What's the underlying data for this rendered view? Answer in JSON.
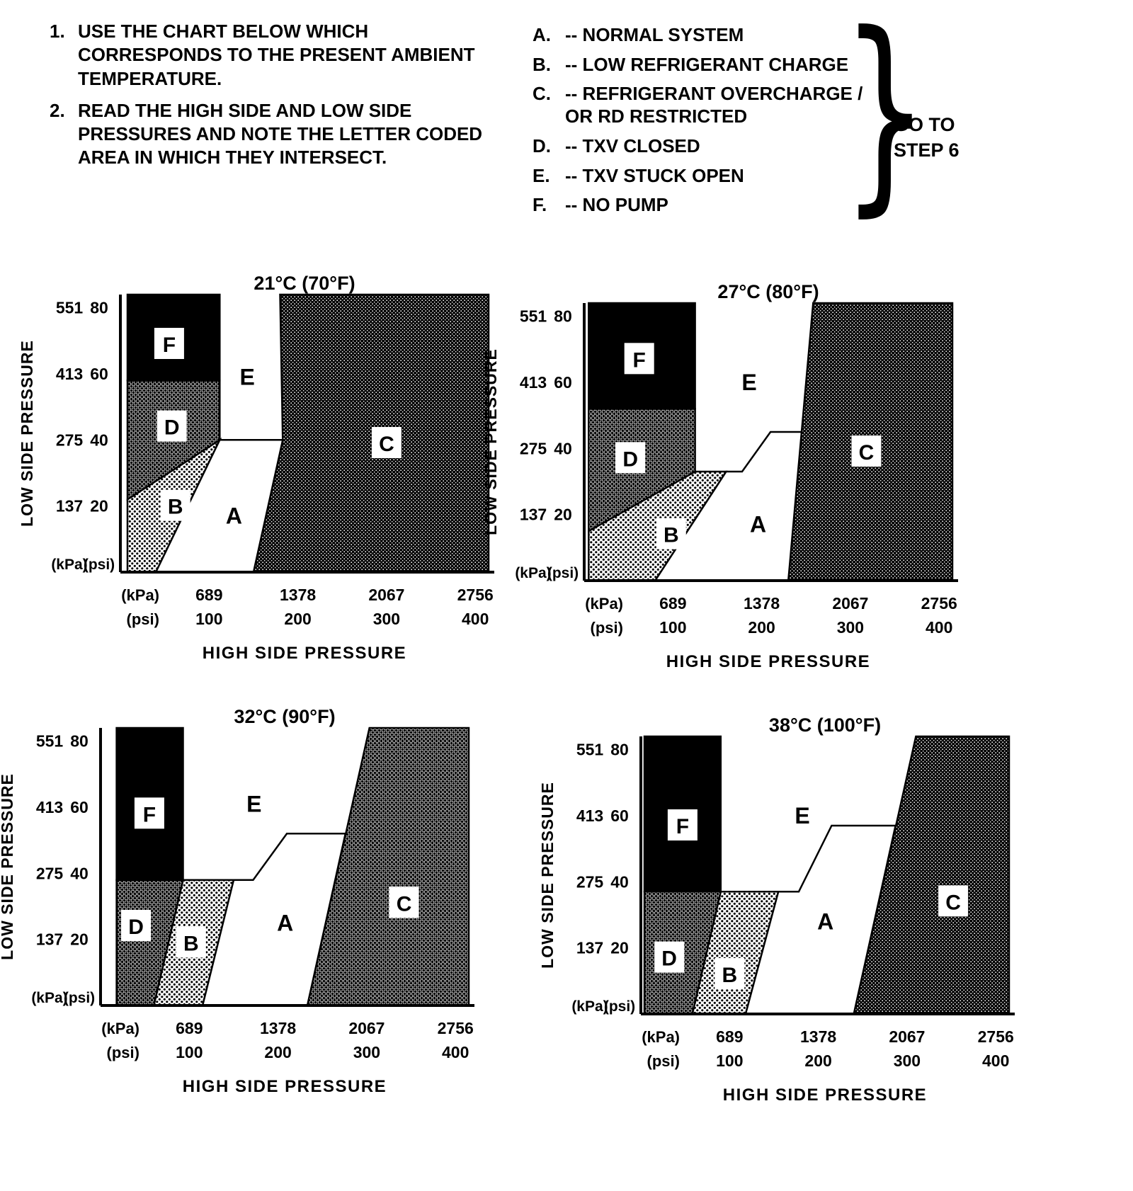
{
  "instructions": [
    {
      "num": "1.",
      "text": "USE THE CHART BELOW WHICH CORRESPONDS TO THE PRESENT AMBIENT TEMPERATURE."
    },
    {
      "num": "2.",
      "text": "READ THE HIGH SIDE AND LOW SIDE PRESSURES AND NOTE THE LETTER CODED AREA IN WHICH THEY INTERSECT."
    }
  ],
  "legend": {
    "items": [
      {
        "code": "A.",
        "label": "-- NORMAL SYSTEM"
      },
      {
        "code": "B.",
        "label": "-- LOW REFRIGERANT CHARGE"
      },
      {
        "code": "C.",
        "label": "-- REFRIGERANT OVERCHARGE / OR RD RESTRICTED"
      },
      {
        "code": "D.",
        "label": "-- TXV CLOSED"
      },
      {
        "code": "E.",
        "label": "-- TXV STUCK OPEN"
      },
      {
        "code": "F.",
        "label": "-- NO PUMP"
      }
    ],
    "brace_glyph": "}",
    "goto_line1": "GO TO",
    "goto_line2": "STEP 6"
  },
  "chart_data": [
    {
      "type": "area",
      "title": "21°C (70°F)",
      "xlabel": "HIGH SIDE PRESSURE",
      "ylabel": "LOW SIDE PRESSURE",
      "unit_kpa": "(kPa)",
      "unit_psi": "(psi)",
      "xlim": [
        0,
        415
      ],
      "ylim": [
        0,
        84
      ],
      "x_ticks": [
        {
          "v": 100,
          "kpa": "689",
          "psi": "100"
        },
        {
          "v": 200,
          "kpa": "1378",
          "psi": "200"
        },
        {
          "v": 300,
          "kpa": "2067",
          "psi": "300"
        },
        {
          "v": 400,
          "kpa": "2756",
          "psi": "400"
        }
      ],
      "y_ticks": [
        {
          "v": 80,
          "kpa": "551",
          "psi": "80"
        },
        {
          "v": 60,
          "kpa": "413",
          "psi": "60"
        },
        {
          "v": 40,
          "kpa": "275",
          "psi": "40"
        },
        {
          "v": 20,
          "kpa": "137",
          "psi": "20"
        }
      ],
      "regions": [
        {
          "label": "C",
          "meaning": "REFRIGERANT OVERCHARGE / OR RD RESTRICTED",
          "fill": "heavy",
          "boxed": true,
          "label_xy": [
            300,
            39
          ],
          "polygon": [
            [
              150,
              0
            ],
            [
              415,
              0
            ],
            [
              415,
              84
            ],
            [
              180,
              84
            ],
            [
              183,
              40
            ]
          ]
        },
        {
          "label": "B",
          "meaning": "LOW REFRIGERANT CHARGE",
          "fill": "medium",
          "boxed": true,
          "label_xy": [
            62,
            20
          ],
          "polygon": [
            [
              8,
              22
            ],
            [
              112,
              40
            ],
            [
              40,
              0
            ],
            [
              8,
              0
            ]
          ]
        },
        {
          "label": "D",
          "meaning": "TXV CLOSED",
          "fill": "dense",
          "boxed": true,
          "label_xy": [
            58,
            44
          ],
          "polygon": [
            [
              8,
              58
            ],
            [
              112,
              58
            ],
            [
              112,
              40
            ],
            [
              8,
              22
            ]
          ]
        },
        {
          "label": "A",
          "meaning": "NORMAL SYSTEM",
          "fill": "white",
          "boxed": false,
          "label_xy": [
            128,
            17
          ],
          "polygon": [
            [
              40,
              0
            ],
            [
              150,
              0
            ],
            [
              183,
              40
            ],
            [
              112,
              40
            ]
          ]
        },
        {
          "label": "E",
          "meaning": "TXV STUCK OPEN",
          "fill": "white",
          "boxed": false,
          "draw": false,
          "label_xy": [
            143,
            59
          ],
          "polygon": [
            [
              112,
              40
            ],
            [
              183,
              40
            ],
            [
              180,
              84
            ],
            [
              112,
              84
            ]
          ]
        },
        {
          "label": "F",
          "meaning": "NO PUMP",
          "fill": "black",
          "boxed": true,
          "label_xy": [
            55,
            69
          ],
          "polygon": [
            [
              8,
              58
            ],
            [
              112,
              58
            ],
            [
              112,
              84
            ],
            [
              8,
              84
            ]
          ]
        }
      ]
    },
    {
      "type": "area",
      "title": "27°C (80°F)",
      "xlabel": "HIGH SIDE PRESSURE",
      "ylabel": "LOW SIDE PRESSURE",
      "unit_kpa": "(kPa)",
      "unit_psi": "(psi)",
      "xlim": [
        0,
        415
      ],
      "ylim": [
        0,
        84
      ],
      "x_ticks": [
        {
          "v": 100,
          "kpa": "689",
          "psi": "100"
        },
        {
          "v": 200,
          "kpa": "1378",
          "psi": "200"
        },
        {
          "v": 300,
          "kpa": "2067",
          "psi": "300"
        },
        {
          "v": 400,
          "kpa": "2756",
          "psi": "400"
        }
      ],
      "y_ticks": [
        {
          "v": 80,
          "kpa": "551",
          "psi": "80"
        },
        {
          "v": 60,
          "kpa": "413",
          "psi": "60"
        },
        {
          "v": 40,
          "kpa": "275",
          "psi": "40"
        },
        {
          "v": 20,
          "kpa": "137",
          "psi": "20"
        }
      ],
      "regions": [
        {
          "label": "C",
          "meaning": "REFRIGERANT OVERCHARGE / OR RD RESTRICTED",
          "fill": "heavy",
          "boxed": true,
          "label_xy": [
            318,
            39
          ],
          "polygon": [
            [
              230,
              0
            ],
            [
              415,
              0
            ],
            [
              415,
              84
            ],
            [
              258,
              84
            ],
            [
              245,
              45
            ]
          ]
        },
        {
          "label": "B",
          "meaning": "LOW REFRIGERANT CHARGE",
          "fill": "medium",
          "boxed": true,
          "label_xy": [
            98,
            14
          ],
          "polygon": [
            [
              5,
              0
            ],
            [
              5,
              15
            ],
            [
              125,
              33
            ],
            [
              160,
              33
            ],
            [
              80,
              0
            ]
          ]
        },
        {
          "label": "D",
          "meaning": "TXV CLOSED",
          "fill": "dense",
          "boxed": true,
          "label_xy": [
            52,
            37
          ],
          "polygon": [
            [
              5,
              15
            ],
            [
              5,
              52
            ],
            [
              125,
              52
            ],
            [
              125,
              33
            ]
          ]
        },
        {
          "label": "A",
          "meaning": "NORMAL SYSTEM",
          "fill": "white",
          "boxed": false,
          "label_xy": [
            196,
            17
          ],
          "polygon": [
            [
              80,
              0
            ],
            [
              230,
              0
            ],
            [
              245,
              45
            ],
            [
              210,
              45
            ],
            [
              178,
              33
            ],
            [
              160,
              33
            ]
          ]
        },
        {
          "label": "E",
          "meaning": "TXV STUCK OPEN",
          "fill": "white",
          "boxed": false,
          "draw": false,
          "label_xy": [
            186,
            60
          ],
          "polygon": [
            [
              125,
              33
            ],
            [
              178,
              33
            ],
            [
              210,
              45
            ],
            [
              245,
              45
            ],
            [
              258,
              84
            ],
            [
              125,
              84
            ]
          ]
        },
        {
          "label": "F",
          "meaning": "NO PUMP",
          "fill": "black",
          "boxed": true,
          "label_xy": [
            62,
            67
          ],
          "polygon": [
            [
              5,
              52
            ],
            [
              125,
              52
            ],
            [
              125,
              84
            ],
            [
              5,
              84
            ]
          ]
        }
      ]
    },
    {
      "type": "area",
      "title": "32°C (90°F)",
      "xlabel": "HIGH SIDE PRESSURE",
      "ylabel": "LOW SIDE PRESSURE",
      "unit_kpa": "(kPa)",
      "unit_psi": "(psi)",
      "xlim": [
        0,
        415
      ],
      "ylim": [
        0,
        84
      ],
      "x_ticks": [
        {
          "v": 100,
          "kpa": "689",
          "psi": "100"
        },
        {
          "v": 200,
          "kpa": "1378",
          "psi": "200"
        },
        {
          "v": 300,
          "kpa": "2067",
          "psi": "300"
        },
        {
          "v": 400,
          "kpa": "2756",
          "psi": "400"
        }
      ],
      "y_ticks": [
        {
          "v": 80,
          "kpa": "551",
          "psi": "80"
        },
        {
          "v": 60,
          "kpa": "413",
          "psi": "60"
        },
        {
          "v": 40,
          "kpa": "275",
          "psi": "40"
        },
        {
          "v": 20,
          "kpa": "137",
          "psi": "20"
        }
      ],
      "regions": [
        {
          "label": "C",
          "meaning": "REFRIGERANT OVERCHARGE / OR RD RESTRICTED",
          "fill": "dense",
          "boxed": true,
          "label_xy": [
            342,
            31
          ],
          "polygon": [
            [
              233,
              0
            ],
            [
              415,
              0
            ],
            [
              415,
              84
            ],
            [
              303,
              84
            ]
          ]
        },
        {
          "label": "B",
          "meaning": "LOW REFRIGERANT CHARGE",
          "fill": "medium",
          "boxed": true,
          "label_xy": [
            102,
            19
          ],
          "polygon": [
            [
              60,
              0
            ],
            [
              93,
              38
            ],
            [
              150,
              38
            ],
            [
              115,
              0
            ]
          ]
        },
        {
          "label": "D",
          "meaning": "TXV CLOSED",
          "fill": "dense",
          "boxed": true,
          "label_xy": [
            40,
            24
          ],
          "polygon": [
            [
              18,
              0
            ],
            [
              18,
              38
            ],
            [
              93,
              38
            ],
            [
              60,
              0
            ]
          ]
        },
        {
          "label": "A",
          "meaning": "NORMAL SYSTEM",
          "fill": "white",
          "boxed": false,
          "label_xy": [
            208,
            25
          ],
          "polygon": [
            [
              115,
              0
            ],
            [
              233,
              0
            ],
            [
              276,
              52
            ],
            [
              210,
              52
            ],
            [
              172,
              38
            ],
            [
              150,
              38
            ]
          ]
        },
        {
          "label": "E",
          "meaning": "TXV STUCK OPEN",
          "fill": "white",
          "boxed": false,
          "draw": false,
          "label_xy": [
            173,
            61
          ],
          "polygon": [
            [
              93,
              38
            ],
            [
              172,
              38
            ],
            [
              210,
              52
            ],
            [
              276,
              52
            ],
            [
              303,
              84
            ],
            [
              93,
              84
            ]
          ]
        },
        {
          "label": "F",
          "meaning": "NO PUMP",
          "fill": "black",
          "boxed": true,
          "label_xy": [
            55,
            58
          ],
          "polygon": [
            [
              18,
              38
            ],
            [
              93,
              38
            ],
            [
              93,
              84
            ],
            [
              18,
              84
            ]
          ]
        }
      ]
    },
    {
      "type": "area",
      "title": "38°C (100°F)",
      "xlabel": "HIGH SIDE PRESSURE",
      "ylabel": "LOW SIDE PRESSURE",
      "unit_kpa": "(kPa)",
      "unit_psi": "(psi)",
      "xlim": [
        0,
        415
      ],
      "ylim": [
        0,
        84
      ],
      "x_ticks": [
        {
          "v": 100,
          "kpa": "689",
          "psi": "100"
        },
        {
          "v": 200,
          "kpa": "1378",
          "psi": "200"
        },
        {
          "v": 300,
          "kpa": "2067",
          "psi": "300"
        },
        {
          "v": 400,
          "kpa": "2756",
          "psi": "400"
        }
      ],
      "y_ticks": [
        {
          "v": 80,
          "kpa": "551",
          "psi": "80"
        },
        {
          "v": 60,
          "kpa": "413",
          "psi": "60"
        },
        {
          "v": 40,
          "kpa": "275",
          "psi": "40"
        },
        {
          "v": 20,
          "kpa": "137",
          "psi": "20"
        }
      ],
      "regions": [
        {
          "label": "C",
          "meaning": "REFRIGERANT OVERCHARGE / OR RD RESTRICTED",
          "fill": "heavy",
          "boxed": true,
          "label_xy": [
            352,
            34
          ],
          "polygon": [
            [
              240,
              0
            ],
            [
              415,
              0
            ],
            [
              415,
              84
            ],
            [
              310,
              84
            ]
          ]
        },
        {
          "label": "B",
          "meaning": "LOW REFRIGERANT CHARGE",
          "fill": "medium",
          "boxed": true,
          "label_xy": [
            100,
            12
          ],
          "polygon": [
            [
              58,
              0
            ],
            [
              90,
              37
            ],
            [
              155,
              37
            ],
            [
              118,
              0
            ]
          ]
        },
        {
          "label": "D",
          "meaning": "TXV CLOSED",
          "fill": "dense",
          "boxed": true,
          "label_xy": [
            32,
            17
          ],
          "polygon": [
            [
              4,
              0
            ],
            [
              4,
              37
            ],
            [
              90,
              37
            ],
            [
              58,
              0
            ]
          ]
        },
        {
          "label": "A",
          "meaning": "NORMAL SYSTEM",
          "fill": "white",
          "boxed": false,
          "label_xy": [
            208,
            28
          ],
          "polygon": [
            [
              118,
              0
            ],
            [
              240,
              0
            ],
            [
              287,
              57
            ],
            [
              215,
              57
            ],
            [
              178,
              37
            ],
            [
              155,
              37
            ]
          ]
        },
        {
          "label": "E",
          "meaning": "TXV STUCK OPEN",
          "fill": "white",
          "boxed": false,
          "draw": false,
          "label_xy": [
            182,
            60
          ],
          "polygon": [
            [
              90,
              37
            ],
            [
              178,
              37
            ],
            [
              215,
              57
            ],
            [
              287,
              57
            ],
            [
              310,
              84
            ],
            [
              90,
              84
            ]
          ]
        },
        {
          "label": "F",
          "meaning": "NO PUMP",
          "fill": "black",
          "boxed": true,
          "label_xy": [
            47,
            57
          ],
          "polygon": [
            [
              4,
              37
            ],
            [
              90,
              37
            ],
            [
              90,
              84
            ],
            [
              4,
              84
            ]
          ]
        }
      ]
    }
  ]
}
